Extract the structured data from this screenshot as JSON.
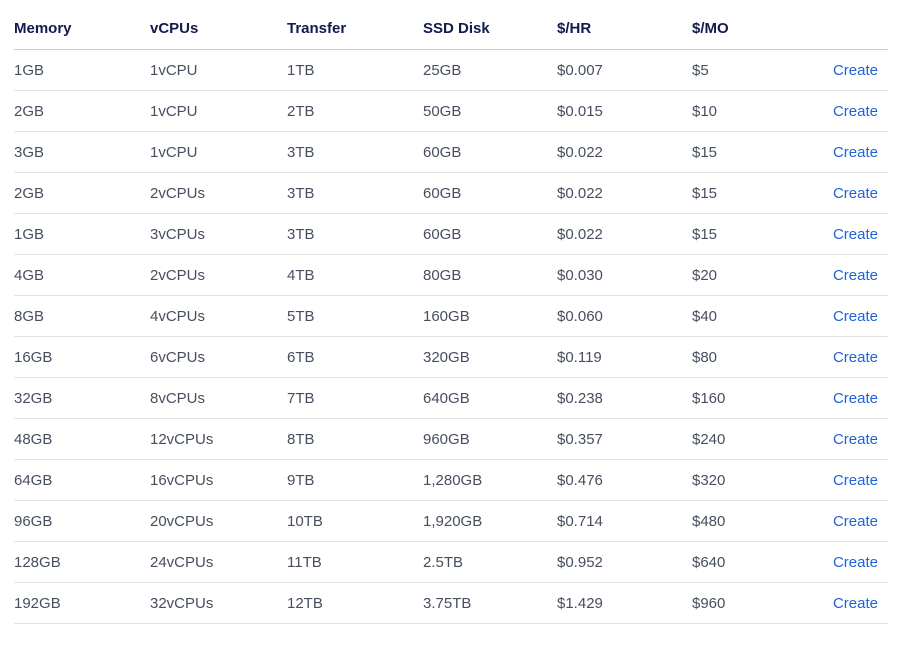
{
  "colors": {
    "header_text": "#131b4e",
    "body_text": "#464e5f",
    "link_blue": "#1e62dc",
    "row_divider": "#dfe3e8"
  },
  "table": {
    "columns": [
      "Memory",
      "vCPUs",
      "Transfer",
      "SSD Disk",
      "$/HR",
      "$/MO"
    ],
    "create_label": "Create",
    "rows": [
      [
        "1GB",
        "1vCPU",
        "1TB",
        "25GB",
        "$0.007",
        "$5"
      ],
      [
        "2GB",
        "1vCPU",
        "2TB",
        "50GB",
        "$0.015",
        "$10"
      ],
      [
        "3GB",
        "1vCPU",
        "3TB",
        "60GB",
        "$0.022",
        "$15"
      ],
      [
        "2GB",
        "2vCPUs",
        "3TB",
        "60GB",
        "$0.022",
        "$15"
      ],
      [
        "1GB",
        "3vCPUs",
        "3TB",
        "60GB",
        "$0.022",
        "$15"
      ],
      [
        "4GB",
        "2vCPUs",
        "4TB",
        "80GB",
        "$0.030",
        "$20"
      ],
      [
        "8GB",
        "4vCPUs",
        "5TB",
        "160GB",
        "$0.060",
        "$40"
      ],
      [
        "16GB",
        "6vCPUs",
        "6TB",
        "320GB",
        "$0.119",
        "$80"
      ],
      [
        "32GB",
        "8vCPUs",
        "7TB",
        "640GB",
        "$0.238",
        "$160"
      ],
      [
        "48GB",
        "12vCPUs",
        "8TB",
        "960GB",
        "$0.357",
        "$240"
      ],
      [
        "64GB",
        "16vCPUs",
        "9TB",
        "1,280GB",
        "$0.476",
        "$320"
      ],
      [
        "96GB",
        "20vCPUs",
        "10TB",
        "1,920GB",
        "$0.714",
        "$480"
      ],
      [
        "128GB",
        "24vCPUs",
        "11TB",
        "2.5TB",
        "$0.952",
        "$640"
      ],
      [
        "192GB",
        "32vCPUs",
        "12TB",
        "3.75TB",
        "$1.429",
        "$960"
      ]
    ]
  }
}
